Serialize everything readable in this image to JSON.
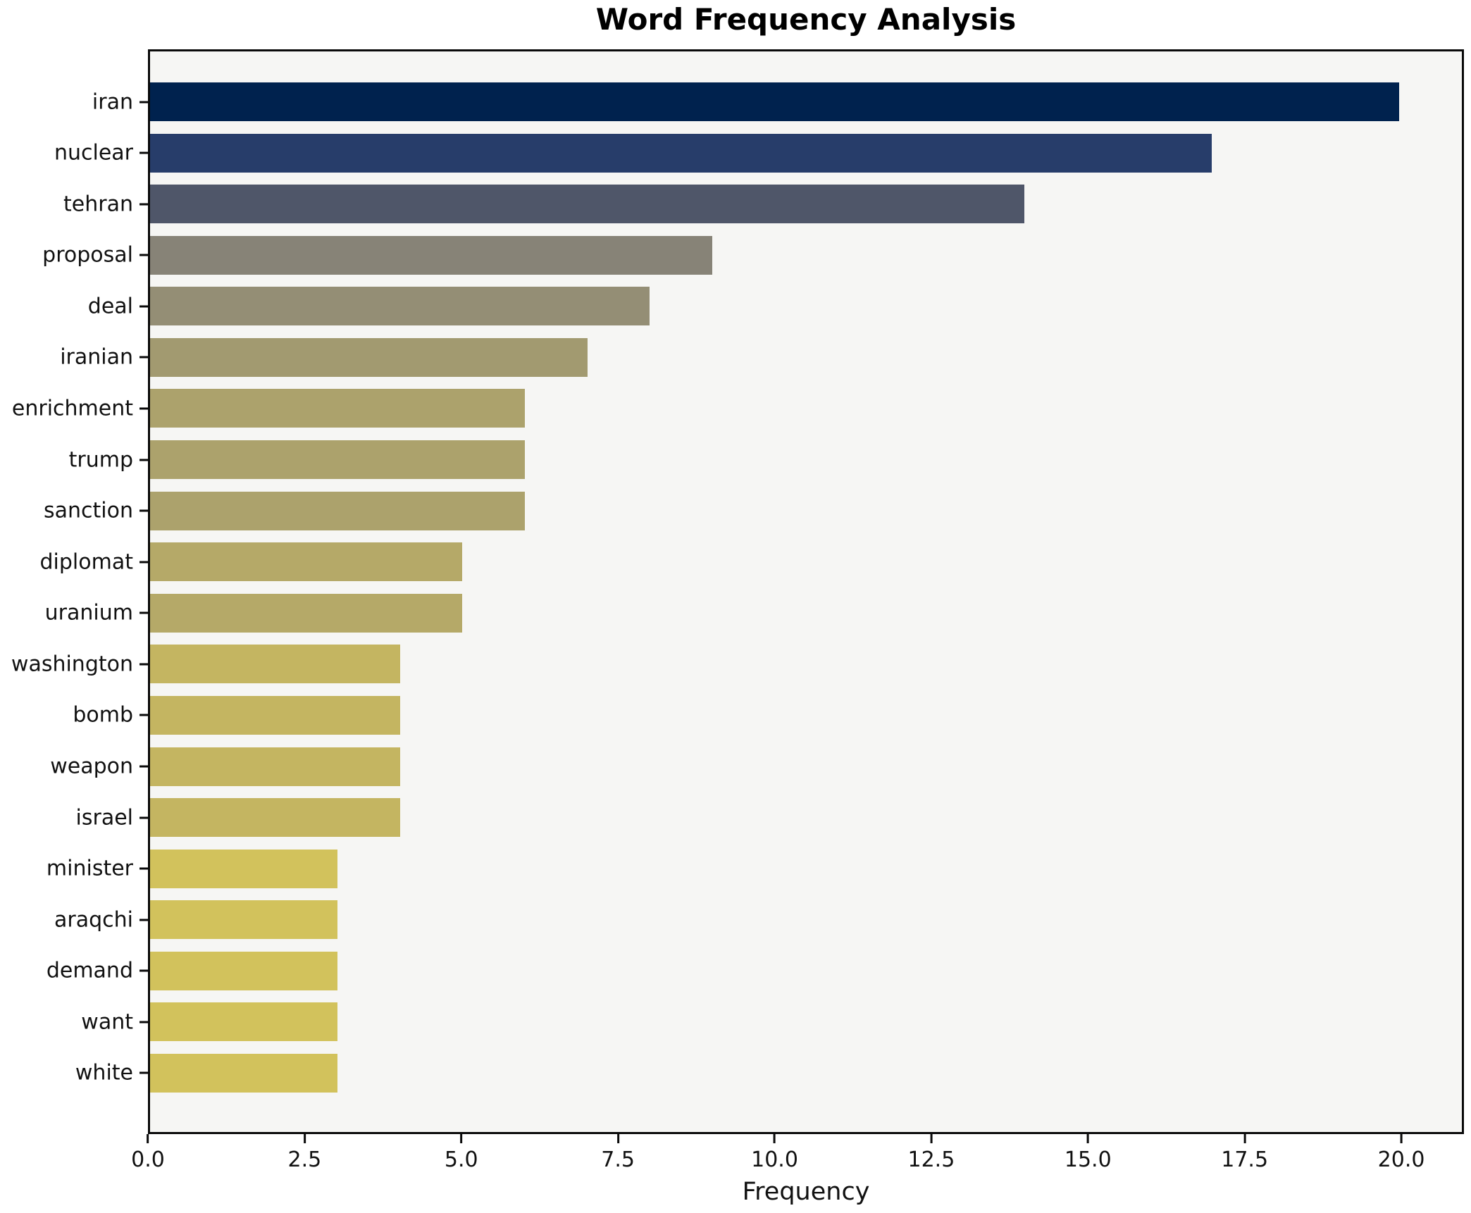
{
  "chart_data": {
    "type": "bar",
    "orientation": "horizontal",
    "title": "Word Frequency Analysis",
    "xlabel": "Frequency",
    "ylabel": "",
    "categories": [
      "iran",
      "nuclear",
      "tehran",
      "proposal",
      "deal",
      "iranian",
      "enrichment",
      "trump",
      "sanction",
      "diplomat",
      "uranium",
      "washington",
      "bomb",
      "weapon",
      "israel",
      "minister",
      "araqchi",
      "demand",
      "want",
      "white"
    ],
    "values": [
      20,
      17,
      14,
      9,
      8,
      7,
      6,
      6,
      6,
      5,
      5,
      4,
      4,
      4,
      4,
      3,
      3,
      3,
      3,
      3
    ],
    "bar_colors": [
      "#00224e",
      "#273d6a",
      "#4f5669",
      "#878377",
      "#948e75",
      "#a29a70",
      "#aca26c",
      "#aca26c",
      "#aca26c",
      "#b5a968",
      "#b5a968",
      "#c4b561",
      "#c4b561",
      "#c4b561",
      "#c4b561",
      "#d2c25c",
      "#d2c25c",
      "#d2c25c",
      "#d2c25c",
      "#d2c25c"
    ],
    "xlim": [
      0,
      21
    ],
    "xticks": [
      0,
      2.5,
      5,
      7.5,
      10,
      12.5,
      15,
      17.5,
      20
    ],
    "xtick_labels": [
      "0.0",
      "2.5",
      "5.0",
      "7.5",
      "10.0",
      "12.5",
      "15.0",
      "17.5",
      "20.0"
    ],
    "grid": false,
    "legend": false,
    "colors": {
      "figure_bg": "#ffffff",
      "plot_bg": "#f6f6f4",
      "spine": "#0a0a0a",
      "text": "#111111"
    }
  }
}
